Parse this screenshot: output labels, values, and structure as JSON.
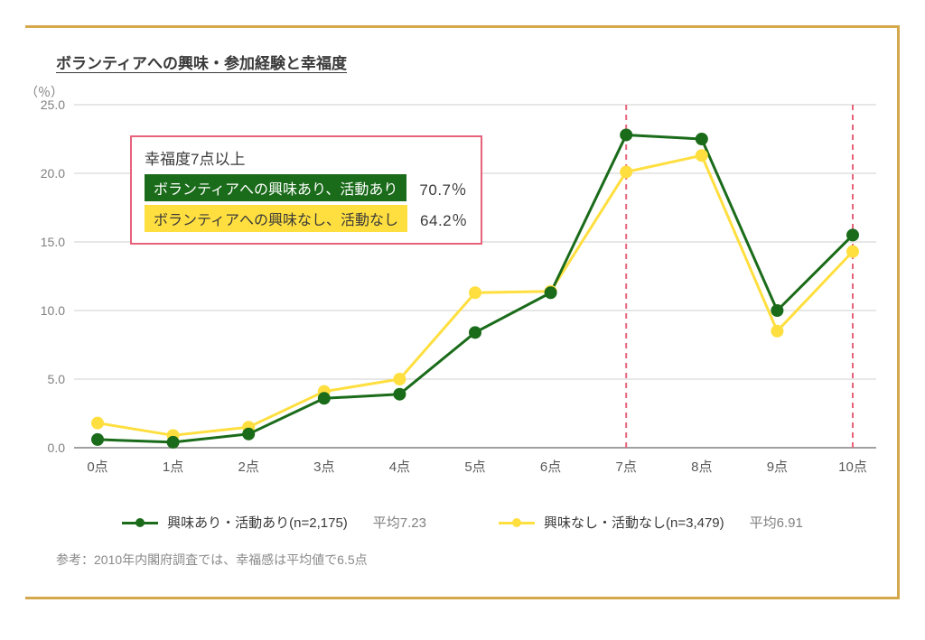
{
  "title": "ボランティアへの興味・参加経験と幸福度",
  "y_unit": "（％）",
  "footnote": "参考：2010年内閣府調査では、幸福感は平均値で6.5点",
  "chart": {
    "type": "line",
    "background_color": "#ffffff",
    "grid_color": "#cfcfcf",
    "axis_color": "#808080",
    "line_width": 3,
    "marker_radius": 6,
    "ylim": [
      0,
      25
    ],
    "ytick_step": 5,
    "y_tick_labels": [
      "0.0",
      "5.0",
      "10.0",
      "15.0",
      "20.0",
      "25.0"
    ],
    "categories": [
      "0点",
      "1点",
      "2点",
      "3点",
      "4点",
      "5点",
      "6点",
      "7点",
      "8点",
      "9点",
      "10点"
    ],
    "reference_lines": {
      "x_positions": [
        7,
        10
      ],
      "color": "#e6637a",
      "dash": "6 5"
    },
    "series": [
      {
        "id": "interested_active",
        "label": "興味あり・活動あり(n=2,175)",
        "avg_label": "平均7.23",
        "color": "#1a6b1a",
        "marker_color": "#1a6b1a",
        "values": [
          0.6,
          0.4,
          1.0,
          3.6,
          3.9,
          8.4,
          11.3,
          22.8,
          22.5,
          10.0,
          15.5
        ]
      },
      {
        "id": "not_interested_inactive",
        "label": "興味なし・活動なし(n=3,479)",
        "avg_label": "平均6.91",
        "color": "#ffdf3f",
        "marker_color": "#ffdf3f",
        "values": [
          1.8,
          0.9,
          1.5,
          4.1,
          5.0,
          11.3,
          11.4,
          20.1,
          21.3,
          8.5,
          14.3
        ]
      }
    ]
  },
  "callout": {
    "border_color": "#e6637a",
    "title": "幸福度7点以上",
    "rows": [
      {
        "chip_bg": "#1a6b1a",
        "chip_fg": "#ffffff",
        "chip_text": "ボランティアへの興味あり、活動あり",
        "pct": "70.7％"
      },
      {
        "chip_bg": "#ffdf3f",
        "chip_fg": "#3a3a3a",
        "chip_text": "ボランティアへの興味なし、活動なし",
        "pct": "64.2％"
      }
    ]
  },
  "frame": {
    "border_color": "#d4a84b"
  }
}
